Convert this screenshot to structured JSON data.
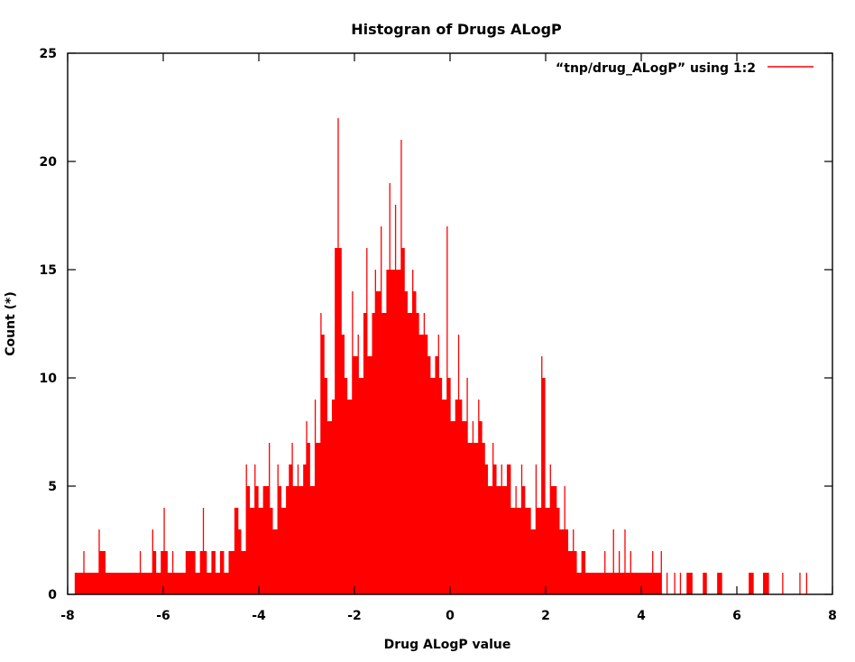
{
  "chart_data": {
    "type": "bar",
    "title": "Histogran of  Drugs ALogP",
    "xlabel": "Drug  ALogP  value",
    "ylabel": "Count (*)",
    "xlim": [
      -8,
      8
    ],
    "ylim": [
      0,
      25
    ],
    "xticks": [
      "-8",
      "-6",
      "-4",
      "-2",
      "0",
      "2",
      "4",
      "6",
      "8"
    ],
    "yticks": [
      "0",
      "5",
      "10",
      "15",
      "20",
      "25"
    ],
    "grid": false,
    "legend_position": "top-right",
    "series": [
      {
        "name": "“tnp/drug_ALogP”   using   1:2",
        "color": "#ff0000",
        "points": [
          [
            -7.84,
            1
          ],
          [
            -7.78,
            1
          ],
          [
            -7.73,
            1
          ],
          [
            -7.66,
            2
          ],
          [
            -7.6,
            1
          ],
          [
            -7.54,
            1
          ],
          [
            -7.46,
            1
          ],
          [
            -7.4,
            1
          ],
          [
            -7.34,
            3
          ],
          [
            -7.28,
            2
          ],
          [
            -7.22,
            2
          ],
          [
            -7.16,
            1
          ],
          [
            -7.1,
            1
          ],
          [
            -7.02,
            1
          ],
          [
            -6.94,
            1
          ],
          [
            -6.86,
            1
          ],
          [
            -6.8,
            1
          ],
          [
            -6.7,
            1
          ],
          [
            -6.64,
            1
          ],
          [
            -6.56,
            1
          ],
          [
            -6.48,
            2
          ],
          [
            -6.4,
            1
          ],
          [
            -6.3,
            1
          ],
          [
            -6.22,
            3
          ],
          [
            -6.16,
            2
          ],
          [
            -6.1,
            1
          ],
          [
            -6.04,
            2
          ],
          [
            -5.98,
            4
          ],
          [
            -5.92,
            2
          ],
          [
            -5.86,
            1
          ],
          [
            -5.8,
            2
          ],
          [
            -5.74,
            1
          ],
          [
            -5.68,
            1
          ],
          [
            -5.6,
            1
          ],
          [
            -5.52,
            2
          ],
          [
            -5.46,
            2
          ],
          [
            -5.4,
            2
          ],
          [
            -5.34,
            2
          ],
          [
            -5.28,
            1
          ],
          [
            -5.22,
            2
          ],
          [
            -5.16,
            4
          ],
          [
            -5.1,
            2
          ],
          [
            -5.04,
            1
          ],
          [
            -4.98,
            2
          ],
          [
            -4.92,
            2
          ],
          [
            -4.86,
            1
          ],
          [
            -4.8,
            2
          ],
          [
            -4.74,
            2
          ],
          [
            -4.68,
            1
          ],
          [
            -4.62,
            2
          ],
          [
            -4.56,
            2
          ],
          [
            -4.5,
            4
          ],
          [
            -4.44,
            4
          ],
          [
            -4.38,
            3
          ],
          [
            -4.32,
            2
          ],
          [
            -4.26,
            6
          ],
          [
            -4.2,
            5
          ],
          [
            -4.14,
            4
          ],
          [
            -4.08,
            6
          ],
          [
            -4.02,
            5
          ],
          [
            -3.96,
            4
          ],
          [
            -3.9,
            5
          ],
          [
            -3.84,
            5
          ],
          [
            -3.78,
            7
          ],
          [
            -3.72,
            4
          ],
          [
            -3.66,
            3
          ],
          [
            -3.6,
            6
          ],
          [
            -3.54,
            5
          ],
          [
            -3.48,
            4
          ],
          [
            -3.42,
            5
          ],
          [
            -3.36,
            6
          ],
          [
            -3.3,
            7
          ],
          [
            -3.24,
            5
          ],
          [
            -3.18,
            6
          ],
          [
            -3.12,
            5
          ],
          [
            -3.06,
            6
          ],
          [
            -3.0,
            8
          ],
          [
            -2.94,
            7
          ],
          [
            -2.88,
            5
          ],
          [
            -2.82,
            9
          ],
          [
            -2.76,
            7
          ],
          [
            -2.7,
            13
          ],
          [
            -2.64,
            12
          ],
          [
            -2.58,
            10
          ],
          [
            -2.52,
            8
          ],
          [
            -2.46,
            9
          ],
          [
            -2.4,
            16
          ],
          [
            -2.34,
            22
          ],
          [
            -2.28,
            16
          ],
          [
            -2.22,
            12
          ],
          [
            -2.16,
            10
          ],
          [
            -2.1,
            9
          ],
          [
            -2.04,
            14
          ],
          [
            -1.98,
            11
          ],
          [
            -1.92,
            12
          ],
          [
            -1.86,
            10
          ],
          [
            -1.8,
            13
          ],
          [
            -1.74,
            16
          ],
          [
            -1.68,
            11
          ],
          [
            -1.62,
            13
          ],
          [
            -1.56,
            15
          ],
          [
            -1.5,
            14
          ],
          [
            -1.44,
            17
          ],
          [
            -1.38,
            13
          ],
          [
            -1.32,
            15
          ],
          [
            -1.26,
            19
          ],
          [
            -1.2,
            15
          ],
          [
            -1.14,
            18
          ],
          [
            -1.08,
            15
          ],
          [
            -1.02,
            21
          ],
          [
            -0.96,
            16
          ],
          [
            -0.9,
            14
          ],
          [
            -0.84,
            13
          ],
          [
            -0.78,
            15
          ],
          [
            -0.72,
            14
          ],
          [
            -0.66,
            13
          ],
          [
            -0.6,
            12
          ],
          [
            -0.54,
            13
          ],
          [
            -0.48,
            12
          ],
          [
            -0.42,
            11
          ],
          [
            -0.36,
            10
          ],
          [
            -0.3,
            11
          ],
          [
            -0.24,
            12
          ],
          [
            -0.18,
            10
          ],
          [
            -0.12,
            9
          ],
          [
            -0.06,
            17
          ],
          [
            0.0,
            10
          ],
          [
            0.06,
            8
          ],
          [
            0.12,
            9
          ],
          [
            0.18,
            12
          ],
          [
            0.24,
            9
          ],
          [
            0.3,
            8
          ],
          [
            0.36,
            10
          ],
          [
            0.42,
            7
          ],
          [
            0.48,
            8
          ],
          [
            0.54,
            7
          ],
          [
            0.6,
            9
          ],
          [
            0.66,
            8
          ],
          [
            0.72,
            7
          ],
          [
            0.78,
            6
          ],
          [
            0.84,
            5
          ],
          [
            0.9,
            7
          ],
          [
            0.96,
            6
          ],
          [
            1.02,
            5
          ],
          [
            1.08,
            6
          ],
          [
            1.14,
            5
          ],
          [
            1.2,
            6
          ],
          [
            1.26,
            6
          ],
          [
            1.32,
            4
          ],
          [
            1.38,
            5
          ],
          [
            1.44,
            4
          ],
          [
            1.5,
            6
          ],
          [
            1.56,
            5
          ],
          [
            1.62,
            4
          ],
          [
            1.68,
            4
          ],
          [
            1.74,
            3
          ],
          [
            1.8,
            6
          ],
          [
            1.86,
            4
          ],
          [
            1.92,
            11
          ],
          [
            1.98,
            10
          ],
          [
            2.04,
            4
          ],
          [
            2.1,
            6
          ],
          [
            2.16,
            5
          ],
          [
            2.22,
            5
          ],
          [
            2.28,
            4
          ],
          [
            2.34,
            3
          ],
          [
            2.4,
            5
          ],
          [
            2.46,
            3
          ],
          [
            2.52,
            2
          ],
          [
            2.58,
            3
          ],
          [
            2.64,
            2
          ],
          [
            2.7,
            1
          ],
          [
            2.76,
            2
          ],
          [
            2.82,
            2
          ],
          [
            2.88,
            1
          ],
          [
            2.94,
            1
          ],
          [
            3.0,
            1
          ],
          [
            3.06,
            1
          ],
          [
            3.12,
            1
          ],
          [
            3.18,
            1
          ],
          [
            3.24,
            2
          ],
          [
            3.3,
            1
          ],
          [
            3.36,
            1
          ],
          [
            3.42,
            3
          ],
          [
            3.48,
            1
          ],
          [
            3.54,
            2
          ],
          [
            3.6,
            1
          ],
          [
            3.66,
            3
          ],
          [
            3.72,
            1
          ],
          [
            3.78,
            2
          ],
          [
            3.84,
            1
          ],
          [
            3.9,
            1
          ],
          [
            3.96,
            1
          ],
          [
            4.06,
            1
          ],
          [
            4.16,
            1
          ],
          [
            4.24,
            2
          ],
          [
            4.34,
            1
          ],
          [
            4.42,
            2
          ],
          [
            4.54,
            1
          ],
          [
            4.7,
            1
          ],
          [
            4.82,
            1
          ],
          [
            4.96,
            1
          ],
          [
            5.06,
            1
          ],
          [
            5.3,
            1
          ],
          [
            5.36,
            1
          ],
          [
            5.6,
            1
          ],
          [
            5.68,
            1
          ],
          [
            6.26,
            1
          ],
          [
            6.34,
            1
          ],
          [
            6.56,
            1
          ],
          [
            6.66,
            1
          ],
          [
            6.96,
            1
          ],
          [
            7.32,
            1
          ],
          [
            7.46,
            1
          ]
        ]
      }
    ]
  }
}
